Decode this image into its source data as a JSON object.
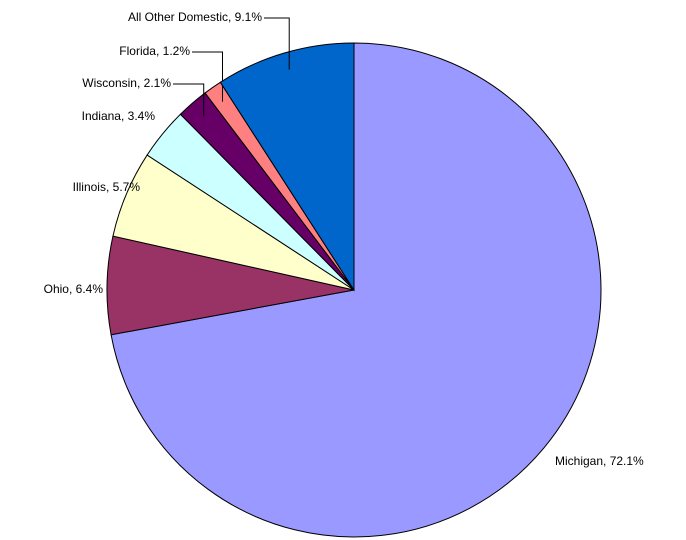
{
  "chart_data": {
    "type": "pie",
    "values": [
      72.1,
      6.4,
      5.7,
      3.4,
      2.1,
      1.2,
      9.1
    ],
    "value_labels": [
      "Michigan, 72.1%",
      "Ohio, 6.4%",
      "Illinois, 5.7%",
      "Indiana, 3.4%",
      "Wisconsin, 2.1%",
      "Florida, 1.2%",
      "All Other Domestic, 9.1%"
    ],
    "colors": [
      "#9999ff",
      "#993366",
      "#ffffcc",
      "#ccffff",
      "#660066",
      "#ff8080",
      "#0066cc"
    ]
  }
}
